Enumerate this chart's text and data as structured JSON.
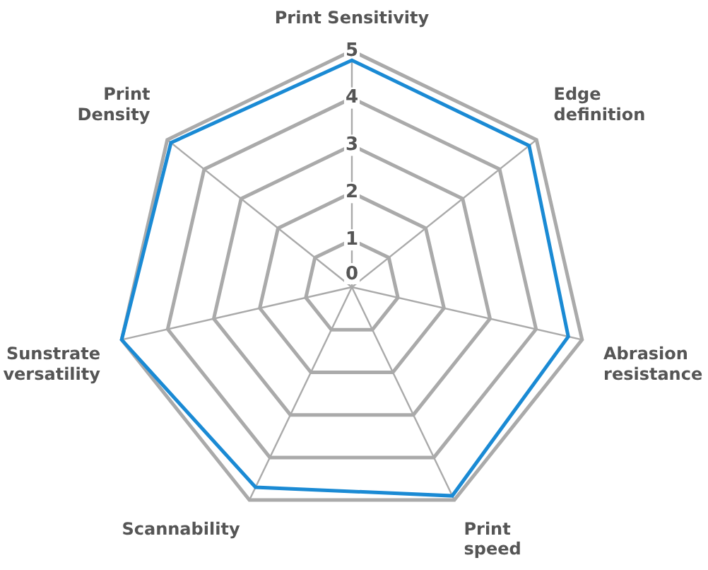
{
  "chart_data": {
    "type": "radar",
    "categories": [
      "Print Sensitivity",
      "Edge definition",
      "Abrasion resistance",
      "Print speed",
      "Scannability",
      "Sunstrate versatility",
      "Print Density"
    ],
    "series": [
      {
        "color": "#1a8ad4",
        "values": [
          4.8,
          4.8,
          4.7,
          4.9,
          4.7,
          5,
          4.9
        ]
      }
    ],
    "ylim": [
      0,
      5
    ],
    "yticks": [
      0,
      1,
      2,
      3,
      4,
      5
    ],
    "grid": true,
    "legend": false,
    "marker": "none"
  }
}
